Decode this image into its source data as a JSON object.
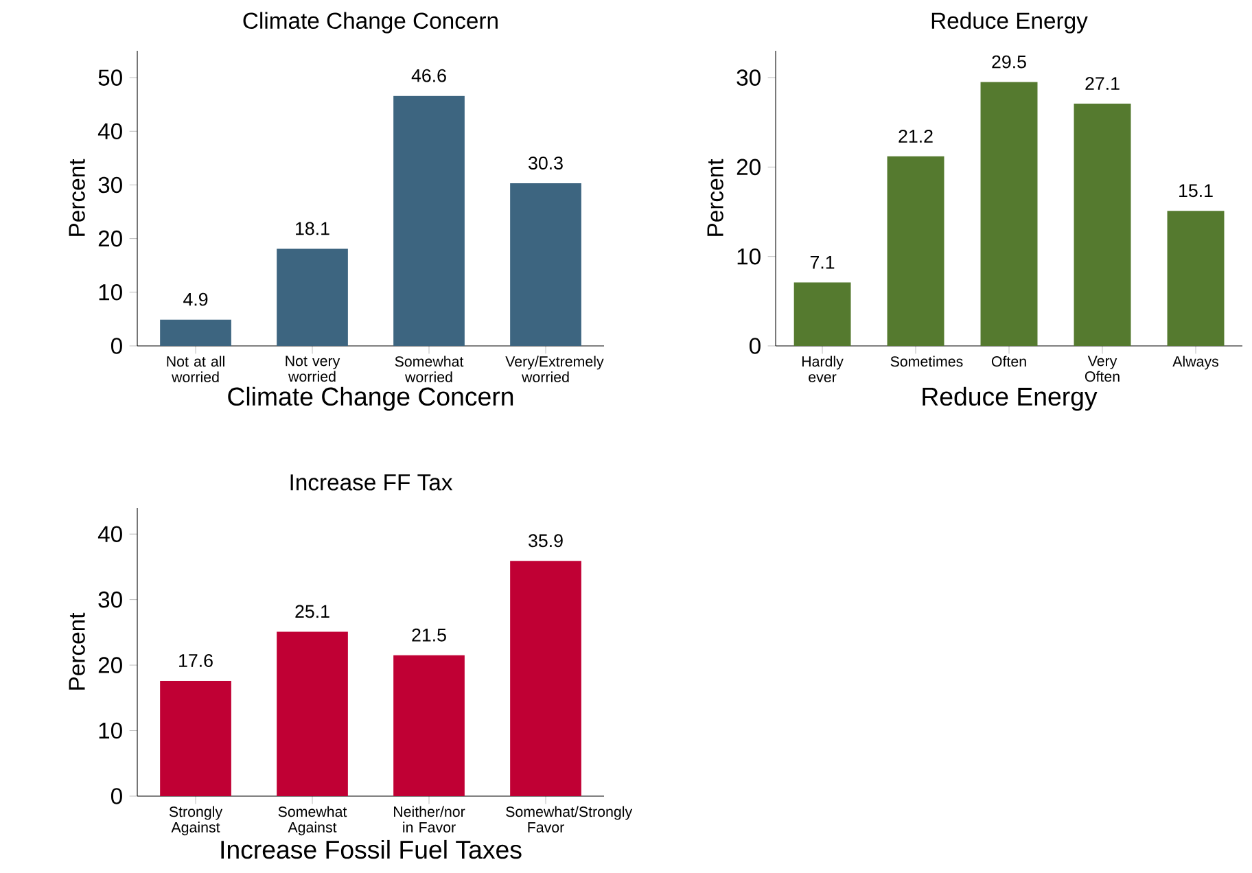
{
  "chart_data": [
    {
      "type": "bar",
      "title": "Climate Change Concern",
      "xlabel": "Climate Change Concern",
      "ylabel": "Percent",
      "categories": [
        "Not at all worried",
        "Not very worried",
        "Somewhat worried",
        "Very/Extremely worried"
      ],
      "values": [
        4.9,
        18.1,
        46.6,
        30.3
      ],
      "color": "#3d6580",
      "ylim": [
        0,
        55
      ],
      "yticks": [
        0,
        10,
        20,
        30,
        40,
        50
      ],
      "data_labels": true
    },
    {
      "type": "bar",
      "title": "Reduce Energy",
      "xlabel": "Reduce Energy",
      "ylabel": "Percent",
      "categories": [
        "Hardly ever",
        "Sometimes",
        "Often",
        "Very Often",
        "Always"
      ],
      "values": [
        7.1,
        21.2,
        29.5,
        27.1,
        15.1
      ],
      "color": "#557a2f",
      "ylim": [
        0,
        33
      ],
      "yticks": [
        0,
        10,
        20,
        30
      ],
      "data_labels": true
    },
    {
      "type": "bar",
      "title": "Increase FF Tax",
      "xlabel": "Increase Fossil Fuel Taxes",
      "ylabel": "Percent",
      "categories": [
        "Strongly Against",
        "Somewhat Against",
        "Neither/nor in Favor",
        "Somewhat/Strongly Favor"
      ],
      "values": [
        17.6,
        25.1,
        21.5,
        35.9
      ],
      "color": "#c00034",
      "ylim": [
        0,
        44
      ],
      "yticks": [
        0,
        10,
        20,
        30,
        40
      ],
      "data_labels": true
    }
  ]
}
